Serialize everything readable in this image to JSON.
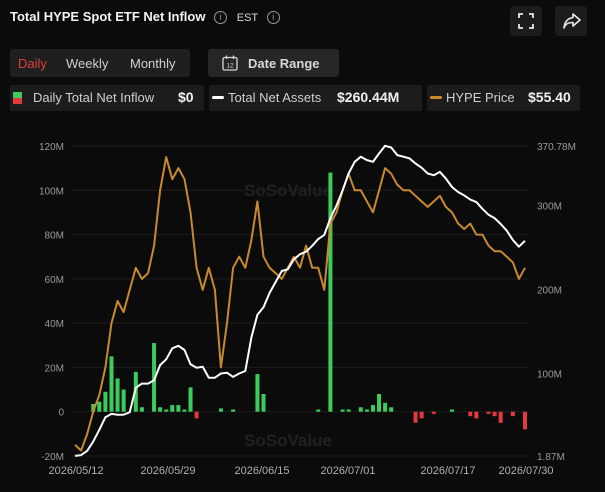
{
  "header": {
    "title": "Total HYPE Spot ETF Net Inflow",
    "timezone": "EST",
    "info_glyph": "i"
  },
  "controls": {
    "periods": [
      "Daily",
      "Weekly",
      "Monthly"
    ],
    "active_period": "Daily",
    "date_range_label": "Date Range",
    "calendar_day": "12"
  },
  "legend": [
    {
      "label": "Daily Total Net Inflow",
      "value": "$0"
    },
    {
      "label": "Total Net Assets",
      "value": "$260.44M"
    },
    {
      "label": "HYPE Price",
      "value": "$55.40"
    }
  ],
  "watermark": "SoSoValue",
  "colors": {
    "inflow_positive": "#3ecb5e",
    "inflow_negative": "#e2383f",
    "net_assets_line": "#ffffff",
    "price_line": "#c8892f",
    "active_tab": "#e0413a"
  },
  "chart_data": {
    "type": "bar",
    "x_tick_labels": [
      "2026/05/12",
      "2026/05/29",
      "2026/06/15",
      "2026/07/01",
      "2026/07/17",
      "2026/07/30"
    ],
    "left_axis": {
      "ticks": [
        "120M",
        "100M",
        "80M",
        "60M",
        "40M",
        "20M",
        "0",
        "-20M"
      ],
      "range": [
        -20,
        120
      ],
      "unit": "M"
    },
    "right_axis": {
      "ticks": [
        "370.78M",
        "300M",
        "200M",
        "100M",
        "1.87M"
      ],
      "range": [
        1.87,
        370.78
      ],
      "unit": "M"
    },
    "series": [
      {
        "name": "Daily Total Net Inflow",
        "type": "bar",
        "axis": "left",
        "values": [
          0,
          0,
          0,
          3.5,
          4.5,
          9,
          25,
          15,
          10,
          0,
          18,
          2,
          0,
          31,
          2,
          1,
          3,
          3,
          1,
          11,
          -3,
          0,
          0,
          0,
          1.5,
          0,
          1,
          0,
          0,
          0,
          17,
          8,
          0,
          0,
          0,
          0,
          0,
          0,
          0,
          0,
          1,
          0,
          108,
          0,
          1,
          1,
          0,
          2,
          1,
          3,
          8,
          4,
          2,
          0,
          0,
          0,
          -5,
          -3,
          0,
          -1,
          0,
          0,
          1,
          0,
          0,
          -2,
          -3,
          0,
          -1,
          -2,
          -5,
          0,
          -2,
          0,
          -8
        ]
      },
      {
        "name": "Total Net Assets",
        "type": "line",
        "axis": "right",
        "values": [
          2,
          3,
          8,
          19,
          33,
          48,
          52,
          51,
          51,
          54,
          83,
          88,
          88,
          92,
          110,
          117,
          130,
          133,
          128,
          111,
          107,
          108,
          95,
          95,
          100,
          101,
          96,
          100,
          103,
          143,
          170,
          179,
          196,
          209,
          222,
          224,
          236,
          242,
          245,
          252,
          260,
          265,
          285,
          300,
          318,
          338,
          352,
          358,
          354,
          352,
          362,
          371,
          369,
          360,
          358,
          356,
          350,
          345,
          338,
          336,
          340,
          332,
          322,
          316,
          312,
          307,
          304,
          296,
          289,
          285,
          278,
          270,
          259,
          251,
          258
        ]
      },
      {
        "name": "HYPE Price",
        "type": "line",
        "axis": "right",
        "values": [
          36,
          35.5,
          37,
          39,
          40.5,
          43,
          47,
          49,
          48,
          50,
          52,
          51,
          51.5,
          54,
          59,
          62,
          60,
          61,
          60,
          57,
          52,
          50,
          52,
          50,
          43,
          47,
          52,
          53,
          52,
          54.5,
          58,
          53,
          52,
          51.5,
          51,
          52,
          53,
          52,
          54,
          52,
          52,
          50,
          56,
          57,
          59,
          60.5,
          59,
          59,
          58,
          57,
          59,
          61,
          60.5,
          59.5,
          59,
          59,
          58.5,
          58,
          57.5,
          58,
          58.5,
          57.5,
          57,
          56,
          55.5,
          56,
          55,
          55,
          54,
          53.5,
          53.5,
          53,
          52.5,
          51,
          52
        ]
      }
    ]
  }
}
